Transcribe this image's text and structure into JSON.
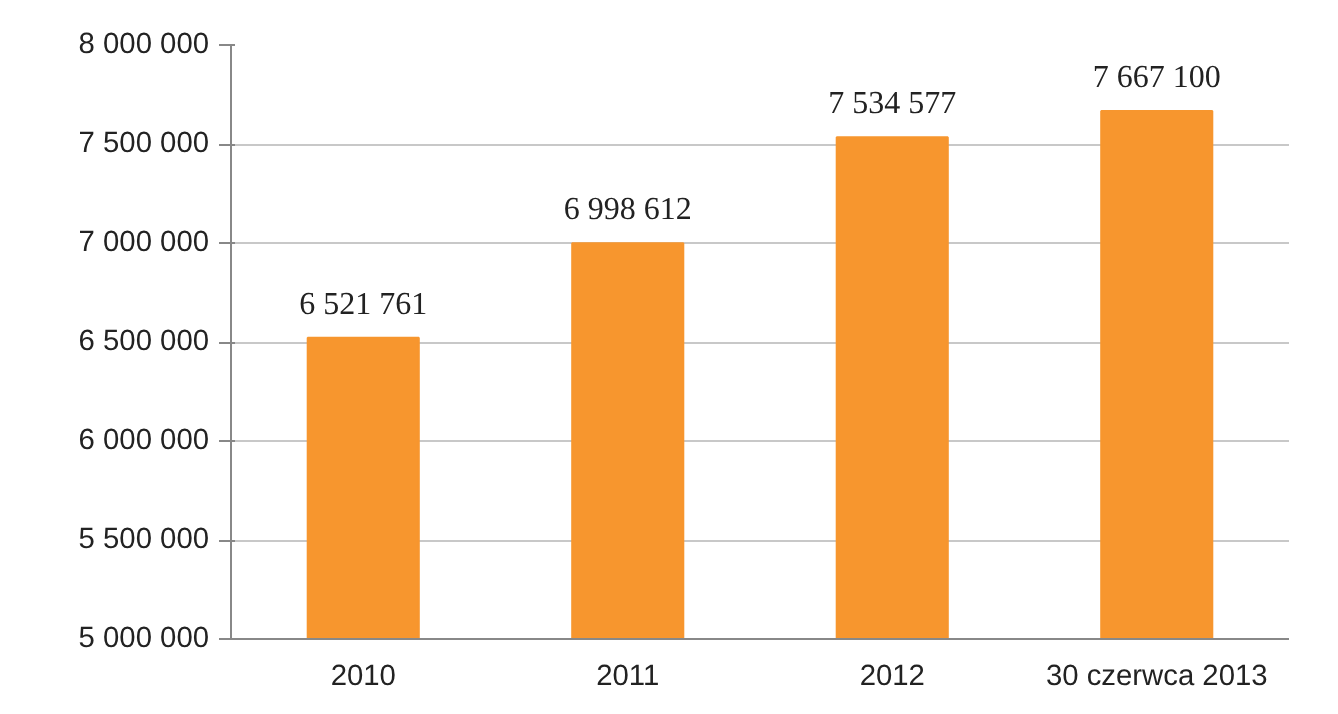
{
  "chart_data": {
    "type": "bar",
    "categories": [
      "2010",
      "2011",
      "2012",
      "30 czerwca 2013"
    ],
    "values": [
      6521761,
      6998612,
      7534577,
      7667100
    ],
    "value_labels": [
      "6 521 761",
      "6 998 612",
      "7 534 577",
      "7 667 100"
    ],
    "color": "#f7962e",
    "ylim": [
      5000000,
      8000000
    ],
    "yticks": [
      {
        "value": 5000000,
        "label": "5 000 000"
      },
      {
        "value": 5500000,
        "label": "5 500 000"
      },
      {
        "value": 6000000,
        "label": "6 000 000"
      },
      {
        "value": 6500000,
        "label": "6 500 000"
      },
      {
        "value": 7000000,
        "label": "7 000 000"
      },
      {
        "value": 7500000,
        "label": "7 500 000"
      },
      {
        "value": 8000000,
        "label": "8 000 000"
      }
    ],
    "grid": "y"
  }
}
